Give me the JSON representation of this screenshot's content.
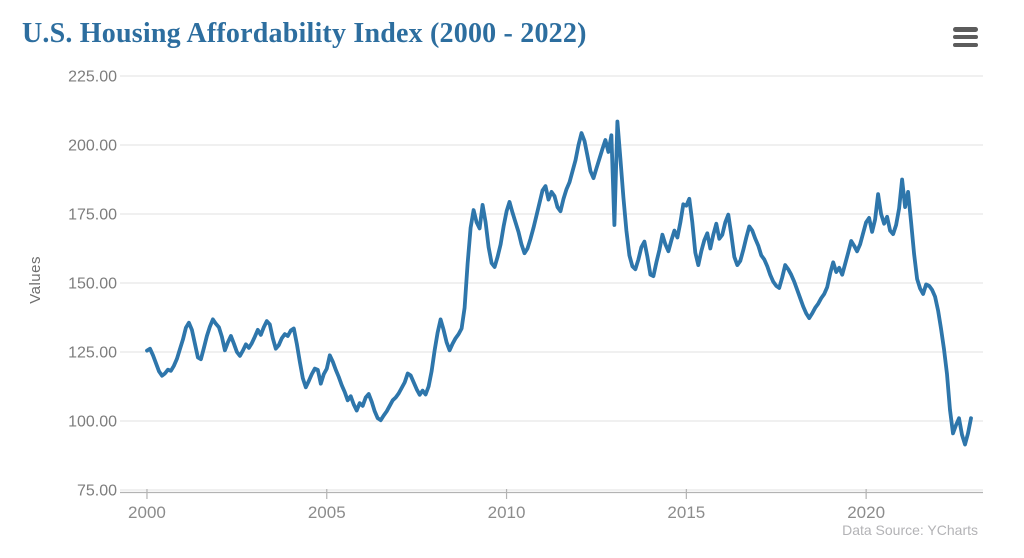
{
  "header": {
    "title": "U.S. Housing Affordability Index (2000 - 2022)",
    "menu_icon": "hamburger-icon"
  },
  "footer": {
    "source_note": "Data Source: YCharts"
  },
  "chart_data": {
    "type": "line",
    "title": "U.S. Housing Affordability Index (2000 - 2022)",
    "xlabel": "",
    "ylabel": "Values",
    "source_note": "Data Source: YCharts",
    "legend": "none",
    "grid": "horizontal",
    "line_color": "#2e76ab",
    "grid_color": "#e8e8e8",
    "axis_color": "#b3b3b3",
    "y_tick_label_color": "#7d7d7d",
    "x_tick_label_color": "#8c8c8c",
    "title_color": "#2d6e9f",
    "ylim": [
      75,
      225
    ],
    "xlim": [
      1999.25,
      2023.25
    ],
    "y_tick_values": [
      225,
      200,
      175,
      150,
      125,
      100,
      75
    ],
    "y_tick_labels": [
      "225.00",
      "200.00",
      "175.00",
      "150.00",
      "125.00",
      "100.00",
      "75.00"
    ],
    "x_tick_values": [
      2000,
      2005,
      2010,
      2015,
      2020
    ],
    "x_tick_labels": [
      "2000",
      "2005",
      "2010",
      "2015",
      "2020"
    ],
    "x_start_year": 2000,
    "points_per_year": 12,
    "series": [
      {
        "name": "U.S. Housing Affordability Index",
        "frequency": "monthly",
        "start": "2000-01",
        "end": "2022-12",
        "values": [
          125.5,
          126.2,
          123.8,
          120.9,
          118.0,
          116.4,
          117.2,
          118.6,
          118.2,
          120.0,
          122.5,
          126.0,
          129.5,
          133.8,
          135.6,
          133.0,
          128.0,
          123.0,
          122.4,
          126.5,
          130.8,
          134.2,
          136.8,
          135.2,
          134.0,
          130.5,
          125.6,
          128.5,
          130.8,
          128.0,
          125.0,
          123.6,
          125.5,
          127.8,
          126.5,
          128.2,
          130.5,
          133.0,
          131.2,
          134.0,
          136.2,
          135.0,
          130.0,
          126.2,
          127.5,
          130.0,
          131.5,
          130.8,
          132.8,
          133.5,
          128.0,
          121.5,
          115.5,
          112.2,
          114.5,
          117.0,
          119.0,
          118.5,
          113.5,
          117.0,
          119.0,
          123.8,
          121.5,
          118.5,
          116.0,
          113.0,
          110.5,
          107.5,
          109.0,
          106.0,
          103.8,
          106.5,
          105.5,
          108.5,
          109.8,
          107.0,
          103.5,
          101.0,
          100.3,
          102.0,
          103.5,
          105.5,
          107.5,
          108.5,
          110.0,
          112.0,
          114.0,
          117.2,
          116.5,
          114.0,
          111.5,
          109.5,
          111.0,
          109.6,
          112.5,
          118.0,
          125.5,
          132.0,
          136.8,
          133.0,
          128.5,
          125.6,
          128.0,
          130.0,
          131.5,
          133.5,
          141.0,
          157.0,
          170.0,
          176.4,
          172.0,
          169.8,
          178.3,
          172.0,
          163.0,
          157.2,
          155.8,
          159.5,
          164.0,
          170.5,
          176.0,
          179.4,
          175.5,
          172.0,
          168.5,
          164.0,
          160.8,
          162.5,
          166.0,
          170.0,
          174.5,
          179.0,
          183.5,
          185.1,
          180.2,
          183.0,
          181.5,
          177.5,
          176.0,
          180.5,
          184.0,
          186.5,
          190.5,
          194.5,
          200.0,
          204.3,
          201.5,
          196.0,
          190.5,
          188.0,
          191.5,
          195.0,
          198.5,
          201.8,
          197.5,
          203.5,
          171.0,
          208.5,
          195.0,
          181.0,
          169.0,
          160.0,
          156.0,
          155.0,
          158.5,
          163.0,
          165.0,
          159.5,
          153.0,
          152.5,
          157.5,
          162.0,
          167.5,
          164.0,
          161.5,
          165.5,
          169.0,
          166.5,
          172.0,
          178.5,
          178.0,
          180.5,
          172.0,
          161.0,
          156.5,
          161.5,
          165.5,
          168.0,
          162.5,
          167.5,
          171.5,
          166.0,
          167.5,
          172.0,
          174.8,
          167.5,
          159.5,
          156.5,
          158.0,
          162.0,
          166.5,
          170.5,
          169.0,
          166.0,
          163.5,
          160.0,
          158.5,
          156.0,
          153.0,
          150.5,
          149.0,
          148.2,
          152.0,
          156.5,
          155.0,
          153.0,
          150.5,
          147.5,
          144.5,
          141.5,
          139.0,
          137.3,
          139.0,
          141.0,
          142.5,
          144.5,
          146.0,
          148.5,
          153.5,
          157.5,
          154.0,
          155.5,
          153.0,
          157.0,
          161.0,
          165.2,
          163.5,
          161.5,
          164.0,
          168.0,
          172.0,
          173.6,
          168.5,
          173.0,
          182.2,
          175.0,
          171.5,
          174.0,
          169.0,
          167.7,
          171.0,
          177.0,
          187.5,
          177.5,
          183.0,
          172.0,
          160.5,
          151.5,
          148.0,
          146.0,
          149.5,
          149.0,
          147.5,
          145.0,
          140.0,
          133.5,
          126.0,
          117.0,
          104.0,
          95.5,
          98.5,
          101.0,
          95.0,
          91.5,
          95.5,
          101.0
        ]
      }
    ]
  }
}
